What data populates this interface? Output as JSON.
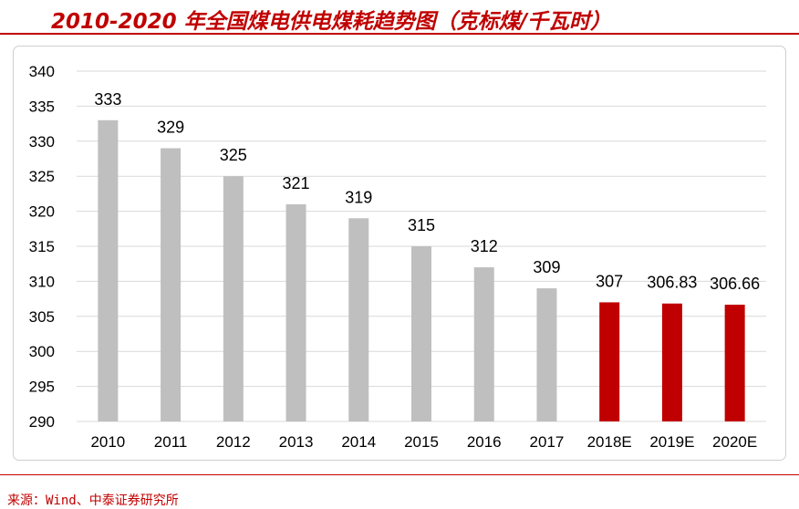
{
  "header": {
    "title": "2010-2020 年全国煤电供电煤耗趋势图（克标煤/千瓦时）"
  },
  "footer": {
    "source": "来源：Wind、中泰证券研究所"
  },
  "colors": {
    "actual_bar": "#bfbfbf",
    "estimate_bar": "#c00000",
    "grid": "#d9d9d9",
    "accent": "#c00000"
  },
  "chart_data": {
    "type": "bar",
    "title": "2010-2020 年全国煤电供电煤耗趋势图（克标煤/千瓦时）",
    "xlabel": "",
    "ylabel": "",
    "categories": [
      "2010",
      "2011",
      "2012",
      "2013",
      "2014",
      "2015",
      "2016",
      "2017",
      "2018E",
      "2019E",
      "2020E"
    ],
    "values": [
      333,
      329,
      325,
      321,
      319,
      315,
      312,
      309,
      307,
      306.83,
      306.66
    ],
    "data_labels": [
      "333",
      "329",
      "325",
      "321",
      "319",
      "315",
      "312",
      "309",
      "307",
      "306.83",
      "306.66"
    ],
    "estimate_flags": [
      false,
      false,
      false,
      false,
      false,
      false,
      false,
      false,
      true,
      true,
      true
    ],
    "ylim": [
      290,
      340
    ],
    "y_ticks": [
      "290",
      "295",
      "300",
      "305",
      "310",
      "315",
      "320",
      "325",
      "330",
      "335",
      "340"
    ],
    "grid": true,
    "legend": "none"
  }
}
